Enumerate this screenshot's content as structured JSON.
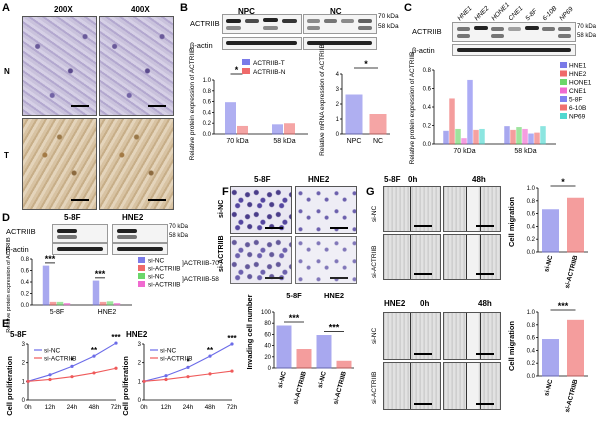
{
  "panels": {
    "A": {
      "label": "A",
      "col1": "200X",
      "col2": "400X",
      "row1": "N",
      "row2": "T"
    },
    "B": {
      "label": "B",
      "blot": {
        "gene": "ACTRIIB",
        "loading": "β-actin",
        "group1": "NPC",
        "group2": "NC",
        "mw1": "70 kDa",
        "mw2": "58 kDa"
      },
      "chart1": {
        "type": "bar",
        "ylabel": "Relative protein expression of ACTRIIB",
        "categories": [
          "70 kDa",
          "58 kDa"
        ],
        "series": [
          {
            "name": "ACTRIIB-T",
            "values": [
              0.58,
              0.17
            ],
            "color": "#7b7be8"
          },
          {
            "name": "ACTRIIB-N",
            "values": [
              0.14,
              0.19
            ],
            "color": "#ef6a6a"
          }
        ],
        "ylim": [
          0,
          1.0
        ],
        "yticks": [
          "0.0",
          "0.2",
          "0.4",
          "0.6",
          "0.8",
          "1.0"
        ],
        "significance": "*"
      },
      "chart2": {
        "type": "bar",
        "ylabel": "Relative mRNA expression of ACTRIIB",
        "categories": [
          "NPC",
          "NC"
        ],
        "values": [
          2.6,
          1.3
        ],
        "colors": [
          "#7b7be8",
          "#ef6a6a"
        ],
        "ylim": [
          0,
          4
        ],
        "yticks": [
          "0",
          "1",
          "2",
          "3",
          "4"
        ],
        "significance": "*"
      }
    },
    "C": {
      "label": "C",
      "blot": {
        "gene": "ACTRIIB",
        "loading": "β-actin",
        "lanes": [
          "HNE1",
          "HNE2",
          "HONE1",
          "CNE1",
          "5-8F",
          "6-10B",
          "NP69"
        ],
        "mw1": "70 kDa",
        "mw2": "58 kDa"
      },
      "chart": {
        "type": "bar",
        "ylabel": "Relative protein expression of ACTRIIB",
        "categories": [
          "70 kDa",
          "58 kDa"
        ],
        "series": [
          {
            "name": "HNE1",
            "values": [
              0.14,
              0.19
            ],
            "color": "#7b7be8"
          },
          {
            "name": "HNE2",
            "values": [
              0.49,
              0.15
            ],
            "color": "#ef6a6a"
          },
          {
            "name": "HONE1",
            "values": [
              0.16,
              0.18
            ],
            "color": "#6bd66b"
          },
          {
            "name": "CNE1",
            "values": [
              0.06,
              0.16
            ],
            "color": "#f06ad0"
          },
          {
            "name": "5-8F",
            "values": [
              0.69,
              0.11
            ],
            "color": "#8080f0"
          },
          {
            "name": "6-10B",
            "values": [
              0.15,
              0.12
            ],
            "color": "#f07070"
          },
          {
            "name": "NP69",
            "values": [
              0.16,
              0.19
            ],
            "color": "#50d8d0"
          }
        ],
        "ylim": [
          0,
          0.8
        ],
        "yticks": [
          "0.0",
          "0.2",
          "0.4",
          "0.6",
          "0.8"
        ]
      }
    },
    "D": {
      "label": "D",
      "blot": {
        "gene": "ACTRIIB",
        "loading": "β-actin",
        "cell1": "5-8F",
        "cell2": "HNE2",
        "mw1": "70 kDa",
        "mw2": "58 kDa"
      },
      "chart": {
        "type": "bar",
        "ylabel": "Relative protein expression of ACTRIIB",
        "categories": [
          "5-8F",
          "HNE2"
        ],
        "series": [
          {
            "name": "si-NC",
            "group": "ACTRIIB-70",
            "values": [
              0.68,
              0.42
            ],
            "color": "#7b7be8"
          },
          {
            "name": "si-ACTRIIB",
            "group": "ACTRIIB-70",
            "values": [
              0.05,
              0.05
            ],
            "color": "#ef6a6a"
          },
          {
            "name": "si-NC",
            "group": "ACTRIIB-58",
            "values": [
              0.05,
              0.06
            ],
            "color": "#6bd66b"
          },
          {
            "name": "si-ACTRIIB",
            "group": "ACTRIIB-58",
            "values": [
              0.03,
              0.03
            ],
            "color": "#f06ad0"
          }
        ],
        "legend_groups": [
          "ACTRIIB-70",
          "ACTRIIB-58"
        ],
        "ylim": [
          0,
          0.8
        ],
        "yticks": [
          "0.0",
          "0.2",
          "0.4",
          "0.6",
          "0.8"
        ],
        "significance": "***"
      }
    },
    "E": {
      "label": "E",
      "charts": [
        {
          "type": "line",
          "title": "5-8F",
          "ylabel": "Cell proliferation",
          "x": [
            "0h",
            "12h",
            "24h",
            "48h",
            "72h"
          ],
          "series": [
            {
              "name": "si-NC",
              "values": [
                1.0,
                1.35,
                1.8,
                2.35,
                3.05
              ],
              "color": "#6b6be8"
            },
            {
              "name": "si-ACTRIIB",
              "values": [
                1.0,
                1.1,
                1.25,
                1.45,
                1.7
              ],
              "color": "#ef5a5a"
            }
          ],
          "ylim": [
            0,
            3
          ],
          "yticks": [
            "0",
            "1",
            "2",
            "3"
          ],
          "sig": [
            "",
            "",
            "*",
            "**",
            "***"
          ]
        },
        {
          "type": "line",
          "title": "HNE2",
          "ylabel": "Cell proliferation",
          "x": [
            "0h",
            "12h",
            "24h",
            "48h",
            "72h"
          ],
          "series": [
            {
              "name": "si-NC",
              "values": [
                1.0,
                1.3,
                1.75,
                2.35,
                3.0
              ],
              "color": "#6b6be8"
            },
            {
              "name": "si-ACTRIIB",
              "values": [
                1.0,
                1.1,
                1.25,
                1.4,
                1.55
              ],
              "color": "#ef5a5a"
            }
          ],
          "ylim": [
            0,
            3
          ],
          "yticks": [
            "0",
            "1",
            "2",
            "3"
          ],
          "sig": [
            "",
            "",
            "*",
            "**",
            "***"
          ]
        }
      ]
    },
    "F": {
      "label": "F",
      "col1": "5-8F",
      "col2": "HNE2",
      "row1": "si-NC",
      "row2": "si-ACTRIIB",
      "chart": {
        "type": "bar",
        "ylabel": "Invading cell number",
        "groups": [
          "5-8F",
          "HNE2"
        ],
        "categories": [
          "si-NC",
          "si-ACTRIIB",
          "si-NC",
          "si-ACTRIIB"
        ],
        "values": [
          75,
          33,
          58,
          12
        ],
        "colors": [
          "#7b7be8",
          "#ef6a6a",
          "#7b7be8",
          "#ef6a6a"
        ],
        "ylim": [
          0,
          100
        ],
        "yticks": [
          "0",
          "20",
          "40",
          "60",
          "80",
          "100"
        ],
        "significance": "***"
      }
    },
    "G": {
      "label": "G",
      "top": {
        "cell": "5-8F",
        "t0": "0h",
        "t1": "48h",
        "row1": "si-NC",
        "row2": "si-ACTRIIB"
      },
      "bottom": {
        "cell": "HNE2",
        "t0": "0h",
        "t1": "48h",
        "row1": "si-NC",
        "row2": "si-ACTRIIB"
      },
      "charts": [
        {
          "type": "bar",
          "ylabel": "Cell migration",
          "categories": [
            "si-NC",
            "si-ACTRIIB"
          ],
          "values": [
            0.66,
            0.84
          ],
          "colors": [
            "#7b7be8",
            "#ef6a6a"
          ],
          "ylim": [
            0,
            1.0
          ],
          "yticks": [
            "0.0",
            "0.2",
            "0.4",
            "0.6",
            "0.8",
            "1.0"
          ],
          "significance": "*"
        },
        {
          "type": "bar",
          "ylabel": "Cell migration",
          "categories": [
            "si-NC",
            "si-ACTRIIB"
          ],
          "values": [
            0.57,
            0.87
          ],
          "colors": [
            "#7b7be8",
            "#ef6a6a"
          ],
          "ylim": [
            0,
            1.0
          ],
          "yticks": [
            "0.0",
            "0.2",
            "0.4",
            "0.6",
            "0.8",
            "1.0"
          ],
          "significance": "***"
        }
      ]
    }
  }
}
